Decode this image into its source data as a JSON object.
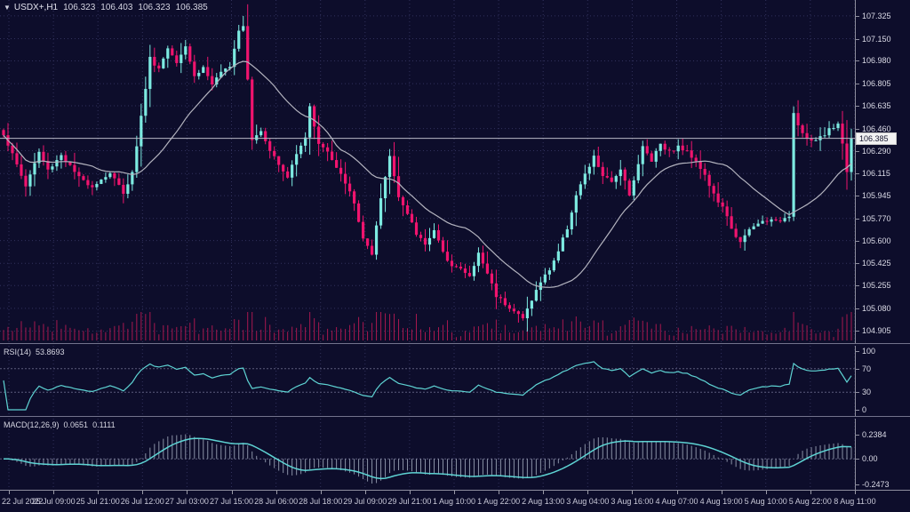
{
  "header": {
    "dropdown_icon": "▼",
    "symbol": "USDX+,H1",
    "open": "106.323",
    "high": "106.403",
    "low": "106.323",
    "close": "106.385"
  },
  "panels": {
    "rsi": {
      "name": "RSI(14)",
      "value": "53.8693"
    },
    "macd": {
      "name": "MACD(12,26,9)",
      "value_main": "0.0651",
      "value_signal": "0.1111"
    }
  },
  "colors": {
    "background": "#0d0d2b",
    "grid": "#31315c",
    "level": "#5d5d7d",
    "bull": "#7deae1",
    "bear": "#f0146e",
    "volume": "#a8184f",
    "ma": "#b4b4bf",
    "price_line": "#b9b9c6",
    "indicator": "#5ed3d3",
    "hist": "#a9b2c4",
    "axis_text": "#dcdce8",
    "separator": "#73738c",
    "price_tag_bg": "#f2f2f2",
    "price_tag_text": "#15152e"
  },
  "chart_data": {
    "type": "candlestick",
    "title": "USDX+,H1",
    "symbol": "USDX+",
    "timeframe": "H1",
    "legend_position": "top-left",
    "grid": true,
    "y_axis": {
      "min": 104.84,
      "max": 107.42,
      "tick_labels": [
        "107.325",
        "107.150",
        "106.980",
        "106.805",
        "106.635",
        "106.460",
        "106.290",
        "106.115",
        "105.945",
        "105.770",
        "105.600",
        "105.425",
        "105.255",
        "105.080",
        "104.905"
      ]
    },
    "x_axis": {
      "tick_labels": [
        "22 Jul 2022",
        "25 Jul 09:00",
        "25 Jul 21:00",
        "26 Jul 12:00",
        "27 Jul 03:00",
        "27 Jul 15:00",
        "28 Jul 06:00",
        "28 Jul 18:00",
        "29 Jul 09:00",
        "29 Jul 21:00",
        "1 Aug 10:00",
        "1 Aug 22:00",
        "2 Aug 13:00",
        "3 Aug 04:00",
        "3 Aug 16:00",
        "4 Aug 07:00",
        "4 Aug 19:00",
        "5 Aug 10:00",
        "5 Aug 22:00",
        "8 Aug 11:00"
      ]
    },
    "last_price": 106.385,
    "current_price_label": "106.385",
    "session_high": 107.325,
    "session_low": 104.985,
    "candle_count": 192,
    "close_waypoints": [
      [
        0,
        106.42
      ],
      [
        3,
        106.18
      ],
      [
        5,
        106.02
      ],
      [
        8,
        106.28
      ],
      [
        10,
        106.14
      ],
      [
        13,
        106.26
      ],
      [
        17,
        106.08
      ],
      [
        20,
        106.02
      ],
      [
        24,
        106.12
      ],
      [
        27,
        105.97
      ],
      [
        29,
        106.12
      ],
      [
        31,
        106.55
      ],
      [
        33,
        107.0
      ],
      [
        35,
        106.92
      ],
      [
        37,
        107.08
      ],
      [
        39,
        106.98
      ],
      [
        41,
        107.1
      ],
      [
        43,
        106.86
      ],
      [
        45,
        106.93
      ],
      [
        47,
        106.8
      ],
      [
        49,
        106.88
      ],
      [
        51,
        106.95
      ],
      [
        53,
        107.22
      ],
      [
        54,
        107.26
      ],
      [
        55,
        106.85
      ],
      [
        56,
        106.38
      ],
      [
        58,
        106.45
      ],
      [
        60,
        106.3
      ],
      [
        62,
        106.18
      ],
      [
        64,
        106.08
      ],
      [
        66,
        106.28
      ],
      [
        68,
        106.4
      ],
      [
        69,
        106.62
      ],
      [
        71,
        106.35
      ],
      [
        73,
        106.28
      ],
      [
        75,
        106.15
      ],
      [
        77,
        106.05
      ],
      [
        79,
        105.88
      ],
      [
        81,
        105.62
      ],
      [
        83,
        105.48
      ],
      [
        85,
        105.92
      ],
      [
        87,
        106.25
      ],
      [
        89,
        105.95
      ],
      [
        91,
        105.8
      ],
      [
        93,
        105.65
      ],
      [
        95,
        105.58
      ],
      [
        97,
        105.68
      ],
      [
        99,
        105.5
      ],
      [
        101,
        105.42
      ],
      [
        103,
        105.38
      ],
      [
        105,
        105.32
      ],
      [
        107,
        105.5
      ],
      [
        109,
        105.35
      ],
      [
        111,
        105.18
      ],
      [
        113,
        105.12
      ],
      [
        115,
        105.06
      ],
      [
        117,
        105.0
      ],
      [
        119,
        105.15
      ],
      [
        121,
        105.28
      ],
      [
        123,
        105.38
      ],
      [
        125,
        105.52
      ],
      [
        127,
        105.7
      ],
      [
        129,
        105.95
      ],
      [
        131,
        106.1
      ],
      [
        133,
        106.24
      ],
      [
        135,
        106.1
      ],
      [
        137,
        106.04
      ],
      [
        139,
        106.16
      ],
      [
        141,
        105.96
      ],
      [
        143,
        106.18
      ],
      [
        144,
        106.32
      ],
      [
        146,
        106.22
      ],
      [
        148,
        106.35
      ],
      [
        150,
        106.28
      ],
      [
        152,
        106.32
      ],
      [
        154,
        106.28
      ],
      [
        156,
        106.22
      ],
      [
        158,
        106.1
      ],
      [
        160,
        105.95
      ],
      [
        162,
        105.85
      ],
      [
        164,
        105.7
      ],
      [
        166,
        105.58
      ],
      [
        168,
        105.68
      ],
      [
        170,
        105.73
      ],
      [
        172,
        105.76
      ],
      [
        174,
        105.74
      ],
      [
        176,
        105.78
      ],
      [
        177,
        105.8
      ],
      [
        178,
        106.58
      ],
      [
        180,
        106.42
      ],
      [
        182,
        106.35
      ],
      [
        184,
        106.4
      ],
      [
        186,
        106.45
      ],
      [
        188,
        106.5
      ],
      [
        189,
        106.35
      ],
      [
        190,
        106.12
      ],
      [
        191,
        106.385
      ]
    ],
    "extremes": [
      {
        "i": 54,
        "high": 107.325
      },
      {
        "i": 117,
        "low": 104.985
      },
      {
        "i": 178,
        "low": 105.75,
        "high": 106.63
      }
    ],
    "ma_period": 21,
    "indicators": {
      "rsi": {
        "period": 14,
        "last": 53.8693,
        "levels": [
          70,
          30
        ],
        "range": [
          0,
          100
        ],
        "axis_labels": [
          {
            "text": "100",
            "value": 100
          },
          {
            "text": "70",
            "value": 70
          },
          {
            "text": "30",
            "value": 30
          },
          {
            "text": "0",
            "value": 0
          }
        ]
      },
      "macd": {
        "fast": 12,
        "slow": 26,
        "signal": 9,
        "last_main": 0.0651,
        "last_signal": 0.1111,
        "axis_labels": [
          {
            "text": "0.2384",
            "value": 0.2384
          },
          {
            "text": "0.00",
            "value": 0
          },
          {
            "text": "-0.2473",
            "value": -0.2473
          }
        ]
      }
    },
    "seed": 1337
  }
}
